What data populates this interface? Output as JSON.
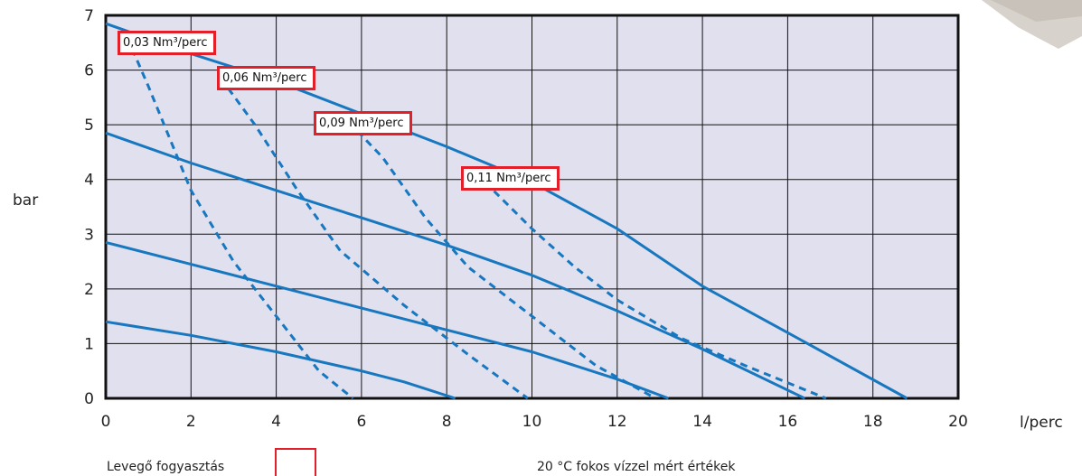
{
  "y_unit_label": "bar",
  "x_unit_label": "l/perc",
  "legend": {
    "label": "Levegő fogyasztás"
  },
  "footnote": "20 °C fokos vízzel mért értékek",
  "callouts": [
    "0,03 Nm³/perc",
    "0,06 Nm³/perc",
    "0,09 Nm³/perc",
    "0,11 Nm³/perc"
  ],
  "colors": {
    "curve": "#1777bf",
    "plot_bg": "#e0e0ef",
    "grid": "#111111",
    "callout_border": "#e3202a"
  },
  "chart_data": {
    "type": "line",
    "xlabel": "l/perc",
    "ylabel": "bar",
    "xlim": [
      0,
      20
    ],
    "ylim": [
      0,
      7
    ],
    "xticks": [
      "0",
      "2",
      "4",
      "6",
      "8",
      "10",
      "12",
      "14",
      "16",
      "18",
      "20"
    ],
    "yticks": [
      "0",
      "1",
      "2",
      "3",
      "4",
      "5",
      "6",
      "7"
    ],
    "grid": true,
    "series": [
      {
        "style": "solid",
        "x": [
          0,
          2,
          4,
          6,
          7,
          8.2
        ],
        "y": [
          1.4,
          1.15,
          0.85,
          0.5,
          0.3,
          0
        ]
      },
      {
        "style": "solid",
        "x": [
          0,
          2,
          4,
          6,
          8,
          10,
          12,
          13.2
        ],
        "y": [
          2.85,
          2.45,
          2.05,
          1.65,
          1.25,
          0.85,
          0.35,
          0
        ]
      },
      {
        "style": "solid",
        "x": [
          0,
          2,
          4,
          6,
          8,
          10,
          12,
          14,
          16.4
        ],
        "y": [
          4.85,
          4.3,
          3.8,
          3.3,
          2.8,
          2.25,
          1.6,
          0.9,
          0
        ]
      },
      {
        "style": "solid",
        "x": [
          0,
          2,
          4,
          6,
          8,
          10,
          12,
          14,
          16,
          18.8
        ],
        "y": [
          6.85,
          6.3,
          5.8,
          5.2,
          4.6,
          3.95,
          3.1,
          2.05,
          1.2,
          0
        ]
      },
      {
        "style": "dashed",
        "name": "0,03 Nm³/perc",
        "x": [
          0.5,
          1,
          2,
          3,
          4,
          5,
          5.8
        ],
        "y": [
          6.6,
          5.7,
          3.8,
          2.5,
          1.5,
          0.5,
          0
        ]
      },
      {
        "style": "dashed",
        "name": "0,06 Nm³/perc",
        "x": [
          2.7,
          3.5,
          4.5,
          5.5,
          7,
          8.5,
          9.9
        ],
        "y": [
          5.85,
          5,
          3.8,
          2.7,
          1.7,
          0.8,
          0
        ]
      },
      {
        "style": "dashed",
        "name": "0,09 Nm³/perc",
        "x": [
          5.7,
          6.5,
          7.5,
          8.5,
          10,
          11.5,
          12.9
        ],
        "y": [
          5.05,
          4.4,
          3.3,
          2.4,
          1.5,
          0.6,
          0
        ]
      },
      {
        "style": "dashed",
        "name": "0,11 Nm³/perc",
        "x": [
          8.9,
          10,
          11,
          12,
          13.5,
          15,
          16.9
        ],
        "y": [
          3.95,
          3.1,
          2.4,
          1.8,
          1.1,
          0.6,
          0
        ]
      }
    ]
  }
}
